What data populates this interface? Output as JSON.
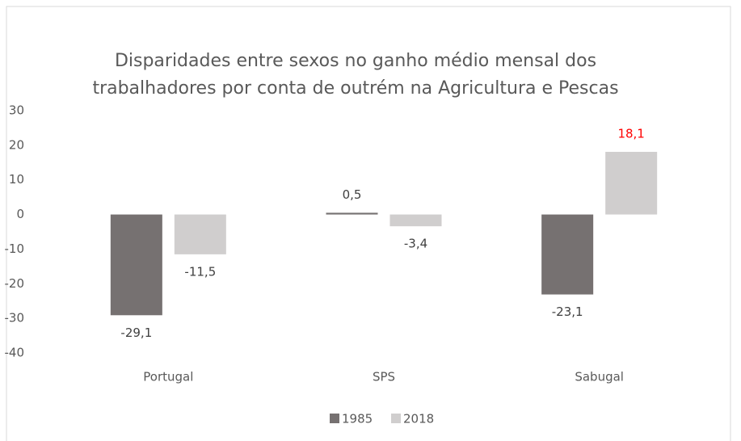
{
  "chart_data": {
    "type": "bar",
    "title": [
      "Disparidades entre sexos no ganho médio mensal dos",
      "trabalhadores por conta de outrém na Agricultura e Pescas"
    ],
    "categories": [
      "Portugal",
      "SPS",
      "Sabugal"
    ],
    "series": [
      {
        "name": "1985",
        "color": "#767171",
        "values": [
          -29.1,
          0.5,
          -23.1
        ],
        "value_labels": [
          "-29,1",
          "0,5",
          "-23,1"
        ],
        "label_colors": [
          "#404040",
          "#404040",
          "#404040"
        ]
      },
      {
        "name": "2018",
        "color": "#d0cece",
        "values": [
          -11.5,
          -3.4,
          18.1
        ],
        "value_labels": [
          "-11,5",
          "-3,4",
          "18,1"
        ],
        "label_colors": [
          "#404040",
          "#404040",
          "#ff0000"
        ]
      }
    ],
    "ylim": [
      -40,
      30
    ],
    "yticks": [
      -40,
      -30,
      -20,
      -10,
      0,
      10,
      20,
      30
    ],
    "grid": false,
    "legend": "bottom"
  }
}
